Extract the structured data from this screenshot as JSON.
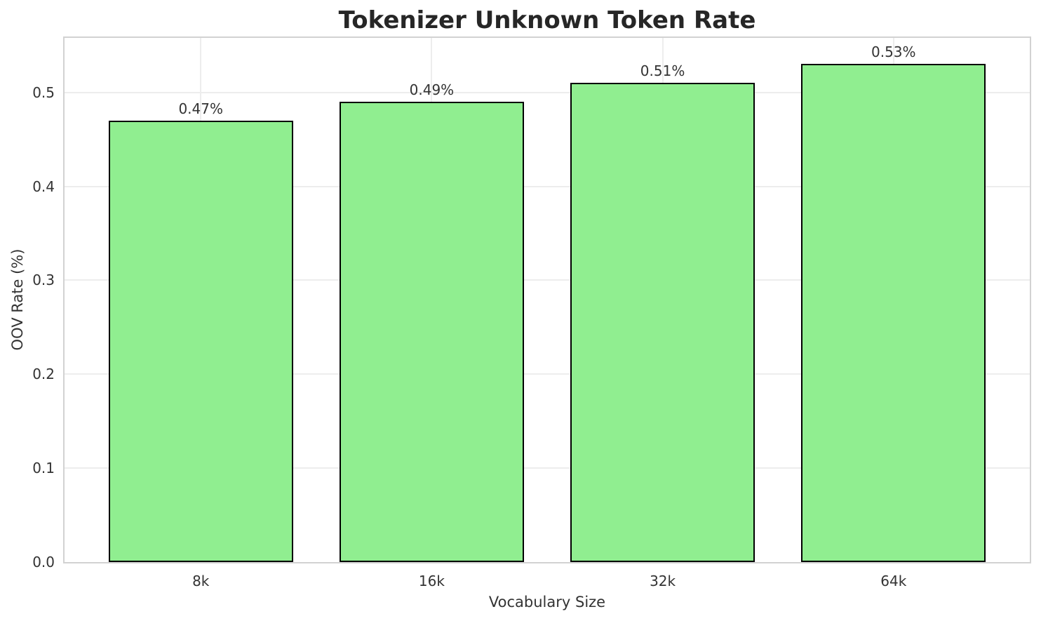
{
  "chart_data": {
    "type": "bar",
    "title": "Tokenizer Unknown Token Rate",
    "xlabel": "Vocabulary Size",
    "ylabel": "OOV Rate (%)",
    "categories": [
      "8k",
      "16k",
      "32k",
      "64k"
    ],
    "values": [
      0.47,
      0.49,
      0.51,
      0.53
    ],
    "bar_labels": [
      "0.47%",
      "0.49%",
      "0.51%",
      "0.53%"
    ],
    "yticks": [
      0.0,
      0.1,
      0.2,
      0.3,
      0.4,
      0.5
    ],
    "ytick_labels": [
      "0.0",
      "0.1",
      "0.2",
      "0.3",
      "0.4",
      "0.5"
    ],
    "ylim": [
      0,
      0.558
    ],
    "xlim": [
      -0.59,
      3.59
    ],
    "bar_width_units": 0.8,
    "grid": true,
    "legend": false,
    "colors": {
      "bar_fill": "#90ee90",
      "bar_edge": "#000000",
      "grid": "#ededed",
      "spine": "#d2d2d2",
      "text": "#333333",
      "title": "#262626",
      "background": "#ffffff"
    }
  }
}
